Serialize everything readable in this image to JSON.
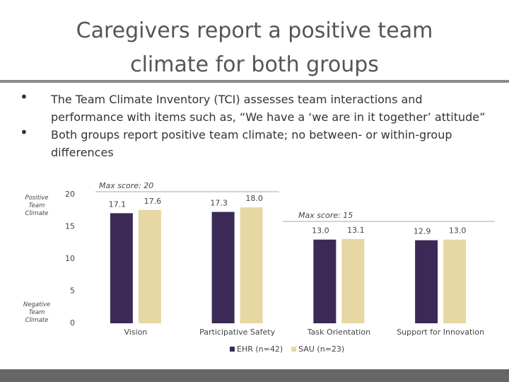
{
  "slide": {
    "title": "Caregivers report a positive team climate for both groups",
    "bullets": [
      "The Team Climate Inventory (TCI) assesses team interactions and performance with items such as, “We have a ‘we are in it together’ attitude”",
      "Both groups report positive team climate; no between- or within-group differences"
    ]
  },
  "chart_data": {
    "type": "bar",
    "categories": [
      "Vision",
      "Participative Safety",
      "Task Orientation",
      "Support for Innovation"
    ],
    "series": [
      {
        "name": "EHR (n=42)",
        "color": "#3b2a56",
        "values": [
          17.1,
          17.3,
          13.0,
          12.9
        ],
        "value_labels": [
          "17.1",
          "17.3",
          "13.0",
          "12.9"
        ]
      },
      {
        "name": "SAU (n=23)",
        "color": "#e6d7a3",
        "values": [
          17.6,
          18.0,
          13.1,
          13.0
        ],
        "value_labels": [
          "17.6",
          "18.0",
          "13.1",
          "13.0"
        ]
      }
    ],
    "ylim": [
      0,
      20
    ],
    "yticks": [
      0,
      5,
      10,
      15,
      20
    ],
    "annotations": [
      "Max score: 20",
      "Max score: 15"
    ],
    "axis_notes": {
      "top": "Positive Team Climate",
      "bottom": "Negative Team Climate"
    }
  }
}
